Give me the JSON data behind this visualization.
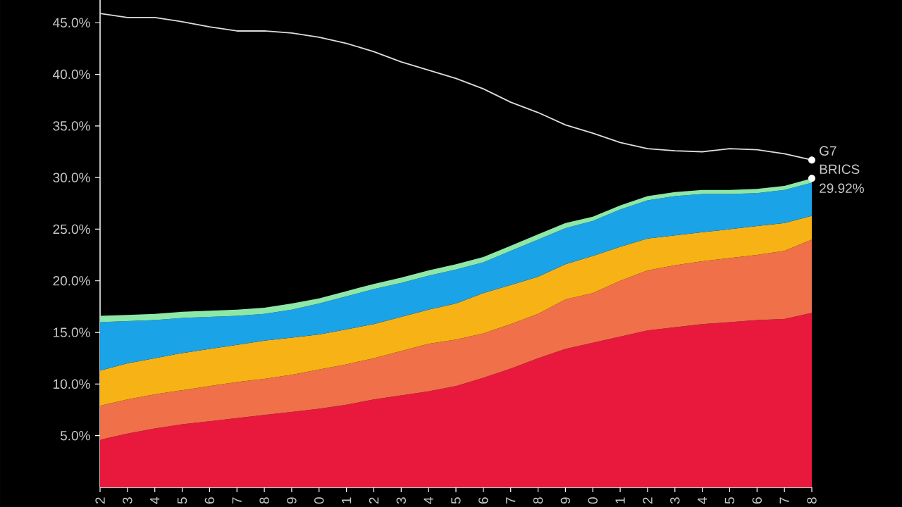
{
  "chart_data": {
    "type": "area",
    "stacked": true,
    "categories": [
      "2",
      "3",
      "4",
      "5",
      "6",
      "7",
      "8",
      "9",
      "0",
      "1",
      "2",
      "3",
      "4",
      "5",
      "6",
      "7",
      "8",
      "9",
      "0",
      "1",
      "2",
      "3",
      "4",
      "5",
      "6",
      "7",
      "8"
    ],
    "series": [
      {
        "color": "#e8193c",
        "values": [
          4.6,
          5.2,
          5.7,
          6.1,
          6.4,
          6.7,
          7.0,
          7.3,
          7.6,
          8.0,
          8.5,
          8.9,
          9.3,
          9.8,
          10.6,
          11.5,
          12.5,
          13.4,
          14.0,
          14.6,
          15.2,
          15.5,
          15.8,
          16.0,
          16.2,
          16.3,
          16.9
        ]
      },
      {
        "color": "#f0704a",
        "values": [
          3.3,
          3.3,
          3.3,
          3.3,
          3.4,
          3.5,
          3.5,
          3.6,
          3.8,
          3.9,
          4.0,
          4.3,
          4.6,
          4.5,
          4.3,
          4.3,
          4.3,
          4.8,
          4.8,
          5.4,
          5.8,
          6.0,
          6.1,
          6.2,
          6.3,
          6.6,
          7.1
        ]
      },
      {
        "color": "#f7b315",
        "values": [
          3.4,
          3.5,
          3.5,
          3.6,
          3.6,
          3.6,
          3.7,
          3.6,
          3.4,
          3.4,
          3.3,
          3.3,
          3.3,
          3.5,
          3.9,
          3.8,
          3.6,
          3.4,
          3.6,
          3.3,
          3.1,
          2.9,
          2.8,
          2.8,
          2.8,
          2.7,
          2.3
        ]
      },
      {
        "color": "#1ba3e8",
        "values": [
          4.7,
          4.1,
          3.7,
          3.4,
          3.1,
          2.8,
          2.6,
          2.7,
          3.0,
          3.2,
          3.4,
          3.3,
          3.3,
          3.3,
          3.0,
          3.3,
          3.6,
          3.5,
          3.4,
          3.6,
          3.7,
          3.8,
          3.7,
          3.4,
          3.2,
          3.2,
          3.2
        ]
      },
      {
        "color": "#8de8a8",
        "values": [
          0.6,
          0.6,
          0.6,
          0.6,
          0.6,
          0.6,
          0.6,
          0.6,
          0.5,
          0.5,
          0.5,
          0.5,
          0.5,
          0.5,
          0.5,
          0.5,
          0.5,
          0.5,
          0.4,
          0.4,
          0.4,
          0.4,
          0.4,
          0.4,
          0.4,
          0.4,
          0.42
        ]
      },
      {
        "type": "line",
        "color": "#dddddd",
        "values": [
          45.9,
          45.5,
          45.5,
          45.1,
          44.6,
          44.2,
          44.2,
          44.0,
          43.6,
          43.0,
          42.2,
          41.2,
          40.4,
          39.6,
          38.6,
          37.3,
          36.3,
          35.1,
          34.3,
          33.4,
          32.8,
          32.6,
          32.5,
          32.8,
          32.7,
          32.3,
          31.7
        ]
      }
    ],
    "ylim": [
      0,
      47.2
    ],
    "yticks": [
      {
        "value": 5,
        "label": "5.0%"
      },
      {
        "value": 10,
        "label": "10.0%"
      },
      {
        "value": 15,
        "label": "15.0%"
      },
      {
        "value": 20,
        "label": "20.0%"
      },
      {
        "value": 25,
        "label": "25.0%"
      },
      {
        "value": 30,
        "label": "30.0%"
      },
      {
        "value": 35,
        "label": "35.0%"
      },
      {
        "value": 40,
        "label": "40.0%"
      },
      {
        "value": 45,
        "label": "45.0%"
      }
    ],
    "annotations": [
      "G7",
      "BRICS",
      "29.92%"
    ]
  }
}
